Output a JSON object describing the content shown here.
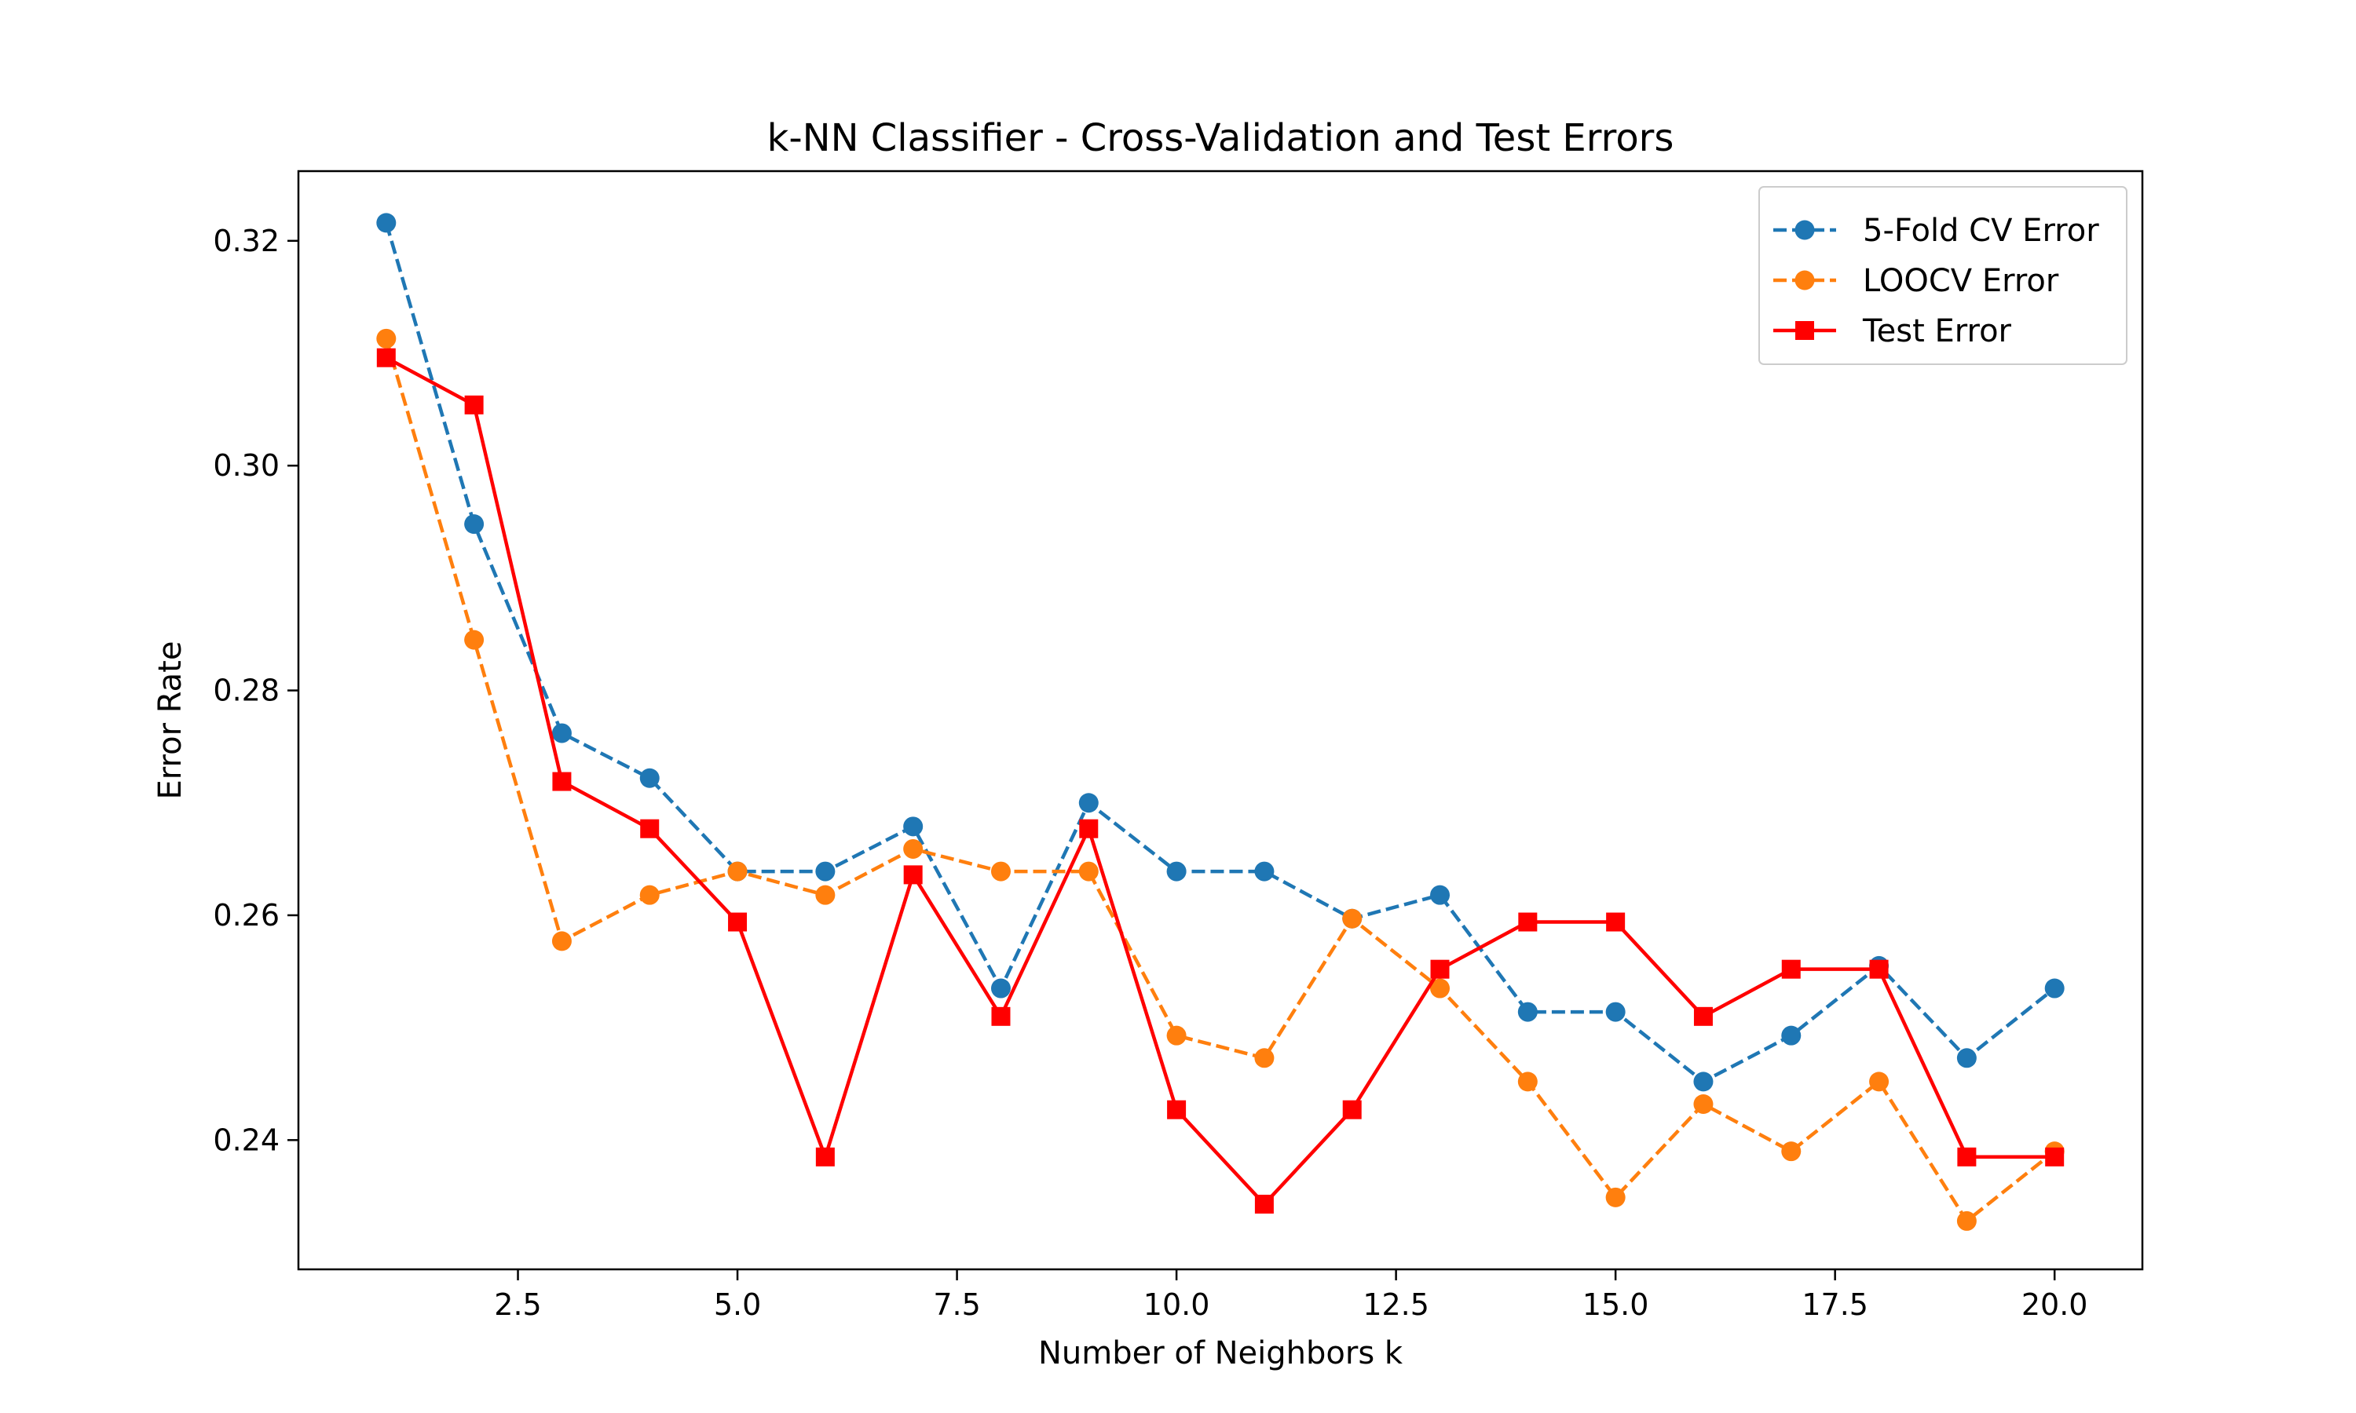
{
  "chart_data": {
    "type": "line",
    "title": "k-NN Classifier - Cross-Validation and Test Errors",
    "xlabel": "Number of Neighbors k",
    "ylabel": "Error Rate",
    "xlim": [
      -0.0,
      21.0
    ],
    "ylim": [
      0.2285,
      0.3262
    ],
    "xticks": [
      2.5,
      5.0,
      7.5,
      10.0,
      12.5,
      15.0,
      17.5,
      20.0
    ],
    "xtick_labels": [
      "2.5",
      "5.0",
      "7.5",
      "10.0",
      "12.5",
      "15.0",
      "17.5",
      "20.0"
    ],
    "yticks": [
      0.24,
      0.26,
      0.28,
      0.3,
      0.32
    ],
    "ytick_labels": [
      "0.24",
      "0.26",
      "0.28",
      "0.30",
      "0.32"
    ],
    "grid": false,
    "legend_position": "top-right",
    "x": [
      1,
      2,
      3,
      4,
      5,
      6,
      7,
      8,
      9,
      10,
      11,
      12,
      13,
      14,
      15,
      16,
      17,
      18,
      19,
      20
    ],
    "series": [
      {
        "name": "5-Fold CV Error",
        "color": "#1f77b4",
        "line_style": "dashed",
        "marker": "circle",
        "values": [
          0.3216,
          0.2948,
          0.2762,
          0.2722,
          0.2639,
          0.2639,
          0.2679,
          0.2535,
          0.27,
          0.2639,
          0.2639,
          0.2597,
          0.2618,
          0.2514,
          0.2514,
          0.2452,
          0.2493,
          0.2555,
          0.2473,
          0.2535
        ]
      },
      {
        "name": "LOOCV Error",
        "color": "#ff7f0e",
        "line_style": "dashed",
        "marker": "circle",
        "values": [
          0.3113,
          0.2845,
          0.2577,
          0.2618,
          0.2639,
          0.2618,
          0.2659,
          0.2639,
          0.2639,
          0.2493,
          0.2473,
          0.2597,
          0.2535,
          0.2452,
          0.2349,
          0.2432,
          0.239,
          0.2452,
          0.2328,
          0.239
        ]
      },
      {
        "name": "Test Error",
        "color": "#ff0000",
        "line_style": "solid",
        "marker": "square",
        "values": [
          0.3096,
          0.3054,
          0.2719,
          0.2677,
          0.2594,
          0.2385,
          0.2636,
          0.251,
          0.2677,
          0.2427,
          0.2343,
          0.2427,
          0.2552,
          0.2594,
          0.2594,
          0.251,
          0.2552,
          0.2552,
          0.2385,
          0.2385
        ]
      }
    ]
  }
}
